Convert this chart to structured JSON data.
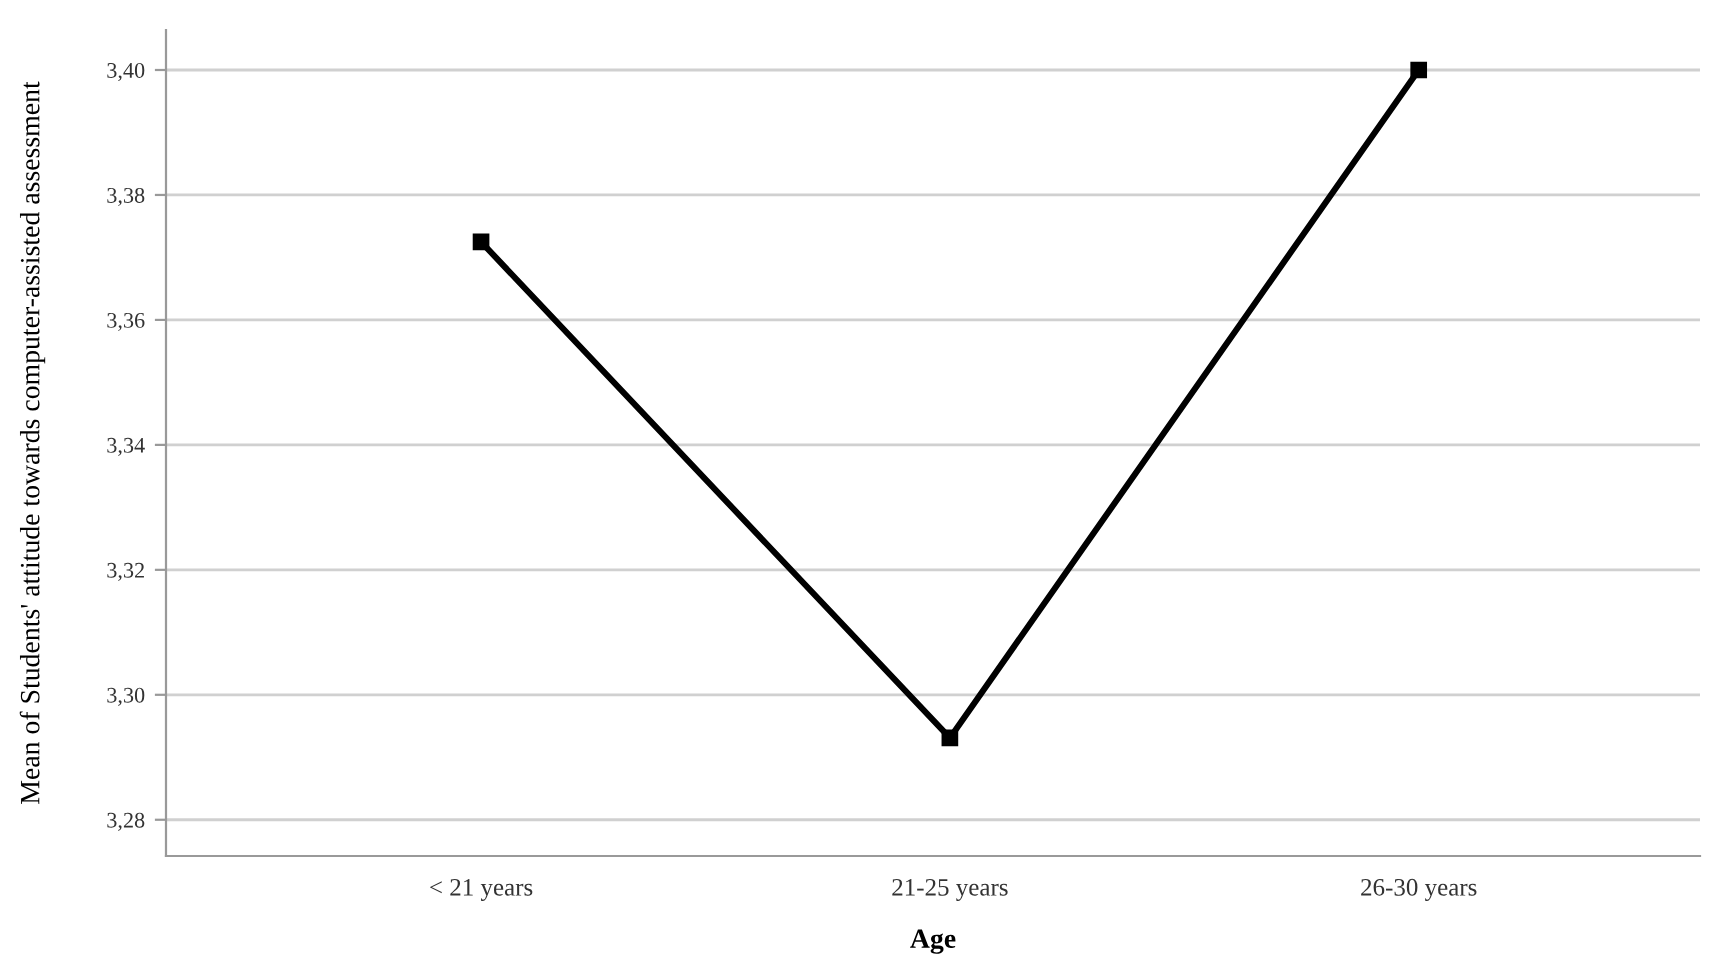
{
  "chart_data": {
    "type": "line",
    "xlabel": "Age",
    "ylabel": "Mean of Students' attitude towards computer-assisted assessment",
    "categories": [
      "< 21 years",
      "21-25 years",
      "26-30 years"
    ],
    "series": [
      {
        "color": "#000000",
        "values": [
          3.3725,
          3.2931,
          3.4
        ]
      }
    ],
    "ylim": [
      3.2742,
      3.4064
    ],
    "yticks": [
      {
        "value": 3.28,
        "label": "3,28"
      },
      {
        "value": 3.3,
        "label": "3,30"
      },
      {
        "value": 3.32,
        "label": "3,32"
      },
      {
        "value": 3.34,
        "label": "3,34"
      },
      {
        "value": 3.36,
        "label": "3,36"
      },
      {
        "value": 3.38,
        "label": "3,38"
      },
      {
        "value": 3.4,
        "label": "3,40"
      }
    ],
    "grid": "y",
    "marker": "square",
    "line_style": "solid"
  }
}
